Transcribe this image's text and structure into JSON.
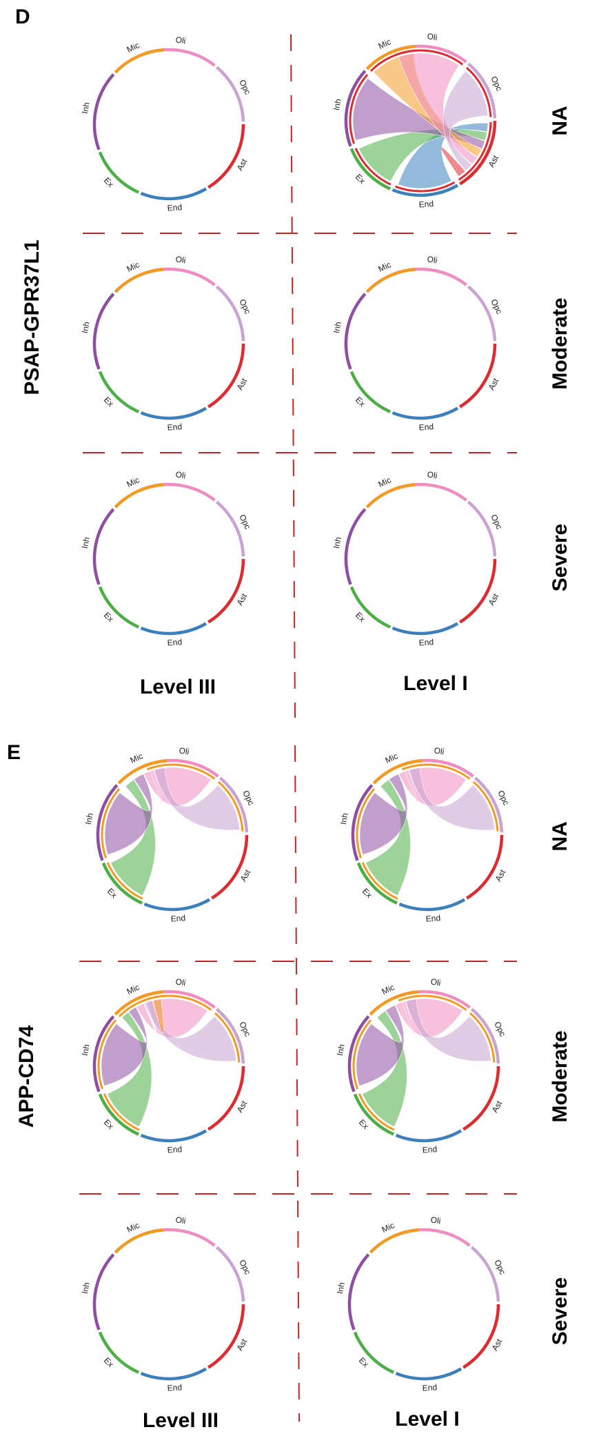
{
  "colors": {
    "Oli": "#f08cc0",
    "Opc": "#c9a3d1",
    "Ast": "#e02a2f",
    "End": "#3b7fbd",
    "Ex": "#4caf45",
    "Inh": "#8e4ea2",
    "Mic": "#f39a22",
    "divider": "#cc2222"
  },
  "panels": {
    "D": {
      "letter": "D",
      "interaction": "PSAP-GPR37L1",
      "columns": [
        "Level III",
        "Level I"
      ],
      "rows": [
        "NA",
        "Moderate",
        "Severe"
      ]
    },
    "E": {
      "letter": "E",
      "interaction": "APP-CD74",
      "columns": [
        "Level III",
        "Level I"
      ],
      "rows": [
        "NA",
        "Moderate",
        "Severe"
      ]
    }
  },
  "chart_data": {
    "type": "chord",
    "sectors": [
      "Oli",
      "Opc",
      "Ast",
      "End",
      "Ex",
      "Inh",
      "Mic"
    ],
    "diagrams": [
      {
        "panel": "D",
        "row": "NA",
        "column": "Level III",
        "links": []
      },
      {
        "panel": "D",
        "row": "NA",
        "column": "Level I",
        "links": [
          {
            "source": "Ast",
            "target": "End"
          },
          {
            "source": "Ast",
            "target": "Ex"
          },
          {
            "source": "Ast",
            "target": "Inh"
          },
          {
            "source": "Ast",
            "target": "Mic"
          },
          {
            "source": "Ast",
            "target": "Oli"
          },
          {
            "source": "Ast",
            "target": "Opc"
          },
          {
            "source": "Ast",
            "target": "Ast"
          }
        ]
      },
      {
        "panel": "D",
        "row": "Moderate",
        "column": "Level III",
        "links": []
      },
      {
        "panel": "D",
        "row": "Moderate",
        "column": "Level I",
        "links": []
      },
      {
        "panel": "D",
        "row": "Severe",
        "column": "Level III",
        "links": []
      },
      {
        "panel": "D",
        "row": "Severe",
        "column": "Level I",
        "links": []
      },
      {
        "panel": "E",
        "row": "NA",
        "column": "Level III",
        "links": [
          {
            "source": "Mic",
            "target": "Ex"
          },
          {
            "source": "Mic",
            "target": "Inh"
          },
          {
            "source": "Mic",
            "target": "Oli"
          },
          {
            "source": "Mic",
            "target": "Opc"
          }
        ]
      },
      {
        "panel": "E",
        "row": "NA",
        "column": "Level I",
        "links": [
          {
            "source": "Mic",
            "target": "Ex"
          },
          {
            "source": "Mic",
            "target": "Inh"
          },
          {
            "source": "Mic",
            "target": "Oli"
          },
          {
            "source": "Mic",
            "target": "Opc"
          }
        ]
      },
      {
        "panel": "E",
        "row": "Moderate",
        "column": "Level III",
        "links": [
          {
            "source": "Mic",
            "target": "Ex"
          },
          {
            "source": "Mic",
            "target": "Inh"
          },
          {
            "source": "Mic",
            "target": "Oli"
          },
          {
            "source": "Mic",
            "target": "Opc"
          },
          {
            "source": "Mic",
            "target": "Mic"
          }
        ]
      },
      {
        "panel": "E",
        "row": "Moderate",
        "column": "Level I",
        "links": [
          {
            "source": "Mic",
            "target": "Ex"
          },
          {
            "source": "Mic",
            "target": "Inh"
          },
          {
            "source": "Mic",
            "target": "Oli"
          },
          {
            "source": "Mic",
            "target": "Opc"
          }
        ]
      },
      {
        "panel": "E",
        "row": "Severe",
        "column": "Level III",
        "links": []
      },
      {
        "panel": "E",
        "row": "Severe",
        "column": "Level I",
        "links": []
      }
    ]
  }
}
